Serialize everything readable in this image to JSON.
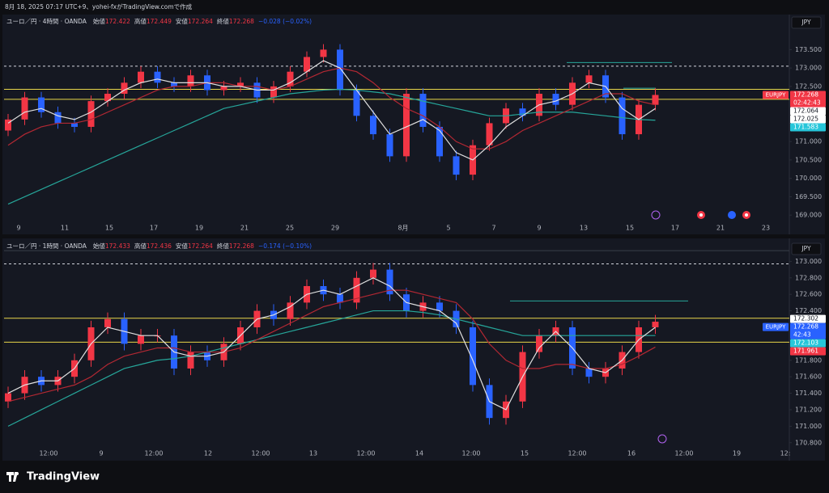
{
  "header": {
    "caption": "8月 18, 2025 07:17 UTC+9、yohei-fxがTradingView.comで作成",
    "brand": "TradingView"
  },
  "chart_data": [
    {
      "type": "candlestick",
      "title": "ユーロ／円 · 4時間 · OANDA",
      "currency": "JPY",
      "legend": [
        {
          "label": "始値",
          "value": 172.422
        },
        {
          "label": "高値",
          "value": 172.449
        },
        {
          "label": "安値",
          "value": 172.264
        },
        {
          "label": "終値",
          "value": 172.268
        }
      ],
      "change": "−0.028 (−0.02%)",
      "up_color": "#f23645",
      "down_color": "#2962ff",
      "grid": false,
      "ylim": [
        168.85,
        174.3
      ],
      "yticks": [
        {
          "value": 173.5,
          "label": "173.500"
        },
        {
          "value": 173,
          "label": "173.000"
        },
        {
          "value": 172.5,
          "label": "172.500"
        },
        {
          "value": 171.5,
          "label": "171.500"
        },
        {
          "value": 171,
          "label": "171.000"
        },
        {
          "value": 170.5,
          "label": "170.500"
        },
        {
          "value": 170,
          "label": "170.000"
        },
        {
          "value": 169.5,
          "label": "169.500"
        },
        {
          "value": 169,
          "label": "169.000"
        }
      ],
      "x_labels": [
        "9",
        "11",
        "15",
        "17",
        "19",
        "21",
        "25",
        "29",
        "8月",
        "5",
        "7",
        "9",
        "13",
        "15",
        "17",
        "21",
        "23"
      ],
      "open": [
        171.3,
        171.6,
        172.2,
        171.8,
        171.5,
        171.4,
        172.1,
        172.3,
        172.6,
        172.9,
        172.6,
        172.5,
        172.8,
        172.4,
        172.5,
        172.6,
        172.2,
        172.5,
        172.9,
        173.3,
        173.5,
        172.4,
        171.7,
        171.2,
        170.6,
        172.3,
        171.4,
        170.6,
        170.1,
        170.9,
        171.5,
        171.9,
        171.7,
        172.3,
        172.0,
        172.6,
        172.8,
        172.2,
        171.2,
        172.0
      ],
      "high": [
        171.75,
        172.35,
        172.35,
        171.95,
        171.65,
        172.25,
        172.45,
        172.75,
        173.05,
        173.05,
        172.75,
        172.95,
        172.95,
        172.65,
        172.75,
        172.75,
        172.65,
        173.05,
        173.45,
        173.65,
        173.65,
        172.55,
        171.85,
        171.35,
        172.45,
        172.45,
        171.55,
        170.75,
        171.05,
        171.65,
        172.05,
        172.05,
        172.45,
        172.45,
        172.75,
        172.95,
        172.95,
        172.35,
        172.15,
        172.45
      ],
      "low": [
        171.15,
        171.45,
        171.65,
        171.35,
        171.25,
        171.25,
        171.95,
        172.15,
        172.45,
        172.45,
        172.35,
        172.35,
        172.25,
        172.25,
        172.35,
        172.05,
        172.05,
        172.35,
        172.75,
        173.15,
        172.25,
        171.55,
        171.05,
        170.45,
        170.45,
        171.25,
        170.45,
        169.95,
        169.95,
        170.75,
        171.35,
        171.55,
        171.55,
        171.85,
        171.85,
        172.45,
        172.05,
        171.05,
        171.05,
        171.85
      ],
      "close": [
        171.6,
        172.2,
        171.8,
        171.5,
        171.4,
        172.1,
        172.3,
        172.6,
        172.9,
        172.6,
        172.5,
        172.8,
        172.4,
        172.5,
        172.6,
        172.2,
        172.5,
        172.9,
        173.3,
        173.5,
        172.4,
        171.7,
        171.2,
        170.6,
        172.3,
        171.4,
        170.6,
        170.1,
        170.9,
        171.5,
        171.9,
        171.7,
        172.3,
        172.0,
        172.6,
        172.8,
        172.2,
        171.2,
        172.0,
        172.268
      ],
      "lines": [
        {
          "color": "#26a69a",
          "values": [
            169.3,
            169.5,
            169.7,
            169.9,
            170.1,
            170.3,
            170.5,
            170.7,
            170.9,
            171.1,
            171.3,
            171.5,
            171.7,
            171.9,
            172.0,
            172.1,
            172.2,
            172.3,
            172.35,
            172.4,
            172.42,
            172.4,
            172.35,
            172.3,
            172.2,
            172.1,
            172.0,
            171.9,
            171.8,
            171.7,
            171.7,
            171.75,
            171.8,
            171.8,
            171.8,
            171.75,
            171.7,
            171.65,
            171.6,
            171.58
          ]
        },
        {
          "color": "#b22833",
          "values": [
            170.9,
            171.2,
            171.4,
            171.5,
            171.5,
            171.6,
            171.8,
            172.0,
            172.2,
            172.4,
            172.5,
            172.5,
            172.6,
            172.6,
            172.5,
            172.5,
            172.4,
            172.5,
            172.7,
            172.9,
            173.0,
            172.9,
            172.6,
            172.2,
            171.9,
            171.7,
            171.4,
            171.0,
            170.8,
            170.8,
            171.0,
            171.3,
            171.5,
            171.7,
            171.9,
            172.1,
            172.3,
            172.3,
            172.1,
            172.0
          ]
        },
        {
          "color": "#e0e0e0",
          "values": [
            171.5,
            171.8,
            171.9,
            171.7,
            171.6,
            171.8,
            172.1,
            172.4,
            172.6,
            172.7,
            172.6,
            172.6,
            172.6,
            172.5,
            172.5,
            172.4,
            172.4,
            172.6,
            172.9,
            173.2,
            173.0,
            172.4,
            171.8,
            171.2,
            171.4,
            171.6,
            171.3,
            170.7,
            170.5,
            170.9,
            171.4,
            171.7,
            172.0,
            172.1,
            172.3,
            172.6,
            172.5,
            171.9,
            171.6,
            171.9
          ]
        }
      ],
      "levels": [
        {
          "value": 173.05,
          "color": "#d1d4dc",
          "dashed": true
        },
        {
          "value": 172.42,
          "color": "#e8d64a",
          "dashed": false
        },
        {
          "value": 172.15,
          "color": "#e8d64a",
          "dashed": false
        },
        {
          "value": 173.15,
          "color": "#26a69a",
          "dashed": false
        },
        {
          "value": 172.45,
          "color": "#26a69a",
          "dashed": false
        }
      ],
      "price_badges": [
        {
          "value": 172.268,
          "tag": "EURJPY",
          "timer": "02:42:43",
          "color": "#f23645"
        },
        {
          "value": 172.064,
          "color": "#ffffff"
        },
        {
          "value": 172.025,
          "color": "#ffffff"
        },
        {
          "value": 171.583,
          "color": "#26c6da"
        }
      ]
    },
    {
      "type": "candlestick",
      "title": "ユーロ／円 · 1時間 · OANDA",
      "currency": "JPY",
      "legend": [
        {
          "label": "始値",
          "value": 172.433
        },
        {
          "label": "高値",
          "value": 172.436
        },
        {
          "label": "安値",
          "value": 172.264
        },
        {
          "label": "終値",
          "value": 172.268
        }
      ],
      "change": "−0.174 (−0.10%)",
      "up_color": "#f23645",
      "down_color": "#2962ff",
      "grid": false,
      "ylim": [
        170.68,
        173.2
      ],
      "yticks": [
        {
          "value": 173,
          "label": "173.000"
        },
        {
          "value": 172.8,
          "label": "172.800"
        },
        {
          "value": 172.6,
          "label": "172.600"
        },
        {
          "value": 172.4,
          "label": "172.400"
        },
        {
          "value": 171.8,
          "label": "171.800"
        },
        {
          "value": 171.6,
          "label": "171.600"
        },
        {
          "value": 171.4,
          "label": "171.400"
        },
        {
          "value": 171.2,
          "label": "171.200"
        },
        {
          "value": 171,
          "label": "171.000"
        },
        {
          "value": 170.8,
          "label": "170.800"
        }
      ],
      "x_labels": [
        "12:00",
        "9",
        "12:00",
        "12",
        "12:00",
        "13",
        "12:00",
        "14",
        "12:00",
        "15",
        "12:00",
        "16",
        "12:00",
        "19",
        "12:"
      ],
      "open": [
        171.3,
        171.4,
        171.6,
        171.5,
        171.6,
        171.8,
        172.2,
        172.3,
        172.0,
        172.1,
        172.1,
        171.7,
        171.9,
        171.8,
        172.0,
        172.2,
        172.4,
        172.3,
        172.5,
        172.7,
        172.6,
        172.5,
        172.8,
        172.9,
        172.6,
        172.4,
        172.5,
        172.4,
        172.2,
        171.5,
        171.1,
        171.3,
        171.9,
        172.1,
        172.2,
        171.7,
        171.6,
        171.7,
        171.9,
        172.2
      ],
      "high": [
        171.48,
        171.68,
        171.68,
        171.68,
        171.88,
        172.28,
        172.38,
        172.38,
        172.18,
        172.18,
        172.18,
        171.98,
        171.98,
        172.08,
        172.28,
        172.48,
        172.48,
        172.58,
        172.78,
        172.78,
        172.68,
        172.88,
        172.98,
        172.98,
        172.68,
        172.58,
        172.58,
        172.48,
        172.28,
        171.58,
        171.38,
        171.98,
        172.18,
        172.28,
        172.28,
        171.78,
        171.78,
        171.98,
        172.28,
        172.35
      ],
      "low": [
        171.22,
        171.32,
        171.42,
        171.42,
        171.52,
        171.72,
        172.12,
        171.92,
        171.92,
        172.02,
        171.62,
        171.62,
        171.72,
        171.72,
        171.92,
        172.12,
        172.22,
        172.22,
        172.42,
        172.52,
        172.42,
        172.42,
        172.72,
        172.52,
        172.32,
        172.32,
        172.32,
        172.12,
        171.42,
        171.02,
        171.02,
        171.22,
        171.82,
        172.02,
        171.62,
        171.52,
        171.52,
        171.62,
        171.82,
        172.12
      ],
      "close": [
        171.4,
        171.6,
        171.5,
        171.6,
        171.8,
        172.2,
        172.3,
        172.0,
        172.1,
        172.1,
        171.7,
        171.9,
        171.8,
        172.0,
        172.2,
        172.4,
        172.3,
        172.5,
        172.7,
        172.6,
        172.5,
        172.8,
        172.9,
        172.6,
        172.4,
        172.5,
        172.4,
        172.2,
        171.5,
        171.1,
        171.3,
        171.9,
        172.1,
        172.2,
        171.7,
        171.6,
        171.7,
        171.9,
        172.2,
        172.268
      ],
      "lines": [
        {
          "color": "#26a69a",
          "values": [
            171.0,
            171.1,
            171.2,
            171.3,
            171.4,
            171.5,
            171.6,
            171.7,
            171.75,
            171.8,
            171.82,
            171.85,
            171.9,
            171.95,
            172.0,
            172.05,
            172.1,
            172.15,
            172.2,
            172.25,
            172.3,
            172.35,
            172.4,
            172.4,
            172.4,
            172.38,
            172.35,
            172.3,
            172.25,
            172.2,
            172.15,
            172.1,
            172.1,
            172.1,
            172.1,
            172.1,
            172.1,
            172.1,
            172.1,
            172.1
          ]
        },
        {
          "color": "#b22833",
          "values": [
            171.3,
            171.35,
            171.4,
            171.45,
            171.5,
            171.6,
            171.75,
            171.85,
            171.9,
            171.95,
            171.95,
            171.9,
            171.9,
            171.9,
            171.95,
            172.05,
            172.15,
            172.25,
            172.35,
            172.45,
            172.5,
            172.55,
            172.6,
            172.65,
            172.65,
            172.6,
            172.55,
            172.5,
            172.3,
            172.0,
            171.8,
            171.7,
            171.7,
            171.75,
            171.75,
            171.7,
            171.7,
            171.75,
            171.85,
            171.96
          ]
        },
        {
          "color": "#e0e0e0",
          "values": [
            171.4,
            171.5,
            171.55,
            171.55,
            171.7,
            172.0,
            172.2,
            172.15,
            172.1,
            172.1,
            171.9,
            171.85,
            171.85,
            171.9,
            172.1,
            172.3,
            172.35,
            172.45,
            172.6,
            172.65,
            172.6,
            172.7,
            172.8,
            172.7,
            172.5,
            172.45,
            172.4,
            172.25,
            171.8,
            171.3,
            171.2,
            171.6,
            171.95,
            172.15,
            171.95,
            171.7,
            171.65,
            171.8,
            172.05,
            172.2
          ]
        }
      ],
      "levels": [
        {
          "value": 173.13,
          "color": "#3a3e48",
          "dashed": false
        },
        {
          "value": 172.97,
          "color": "#d1d4dc",
          "dashed": true
        },
        {
          "value": 172.31,
          "color": "#e8d64a",
          "dashed": false
        },
        {
          "value": 172.02,
          "color": "#e8d64a",
          "dashed": false
        },
        {
          "value": 172.52,
          "color": "#26a69a",
          "dashed": false
        }
      ],
      "price_badges": [
        {
          "value": 172.302,
          "color": "#ffffff"
        },
        {
          "value": 172.268,
          "tag": "EURJPY",
          "timer": "42:43",
          "color": "#2962ff"
        },
        {
          "value": 172.103,
          "color": "#26c6da"
        },
        {
          "value": 171.961,
          "color": "#f23645"
        }
      ]
    }
  ]
}
